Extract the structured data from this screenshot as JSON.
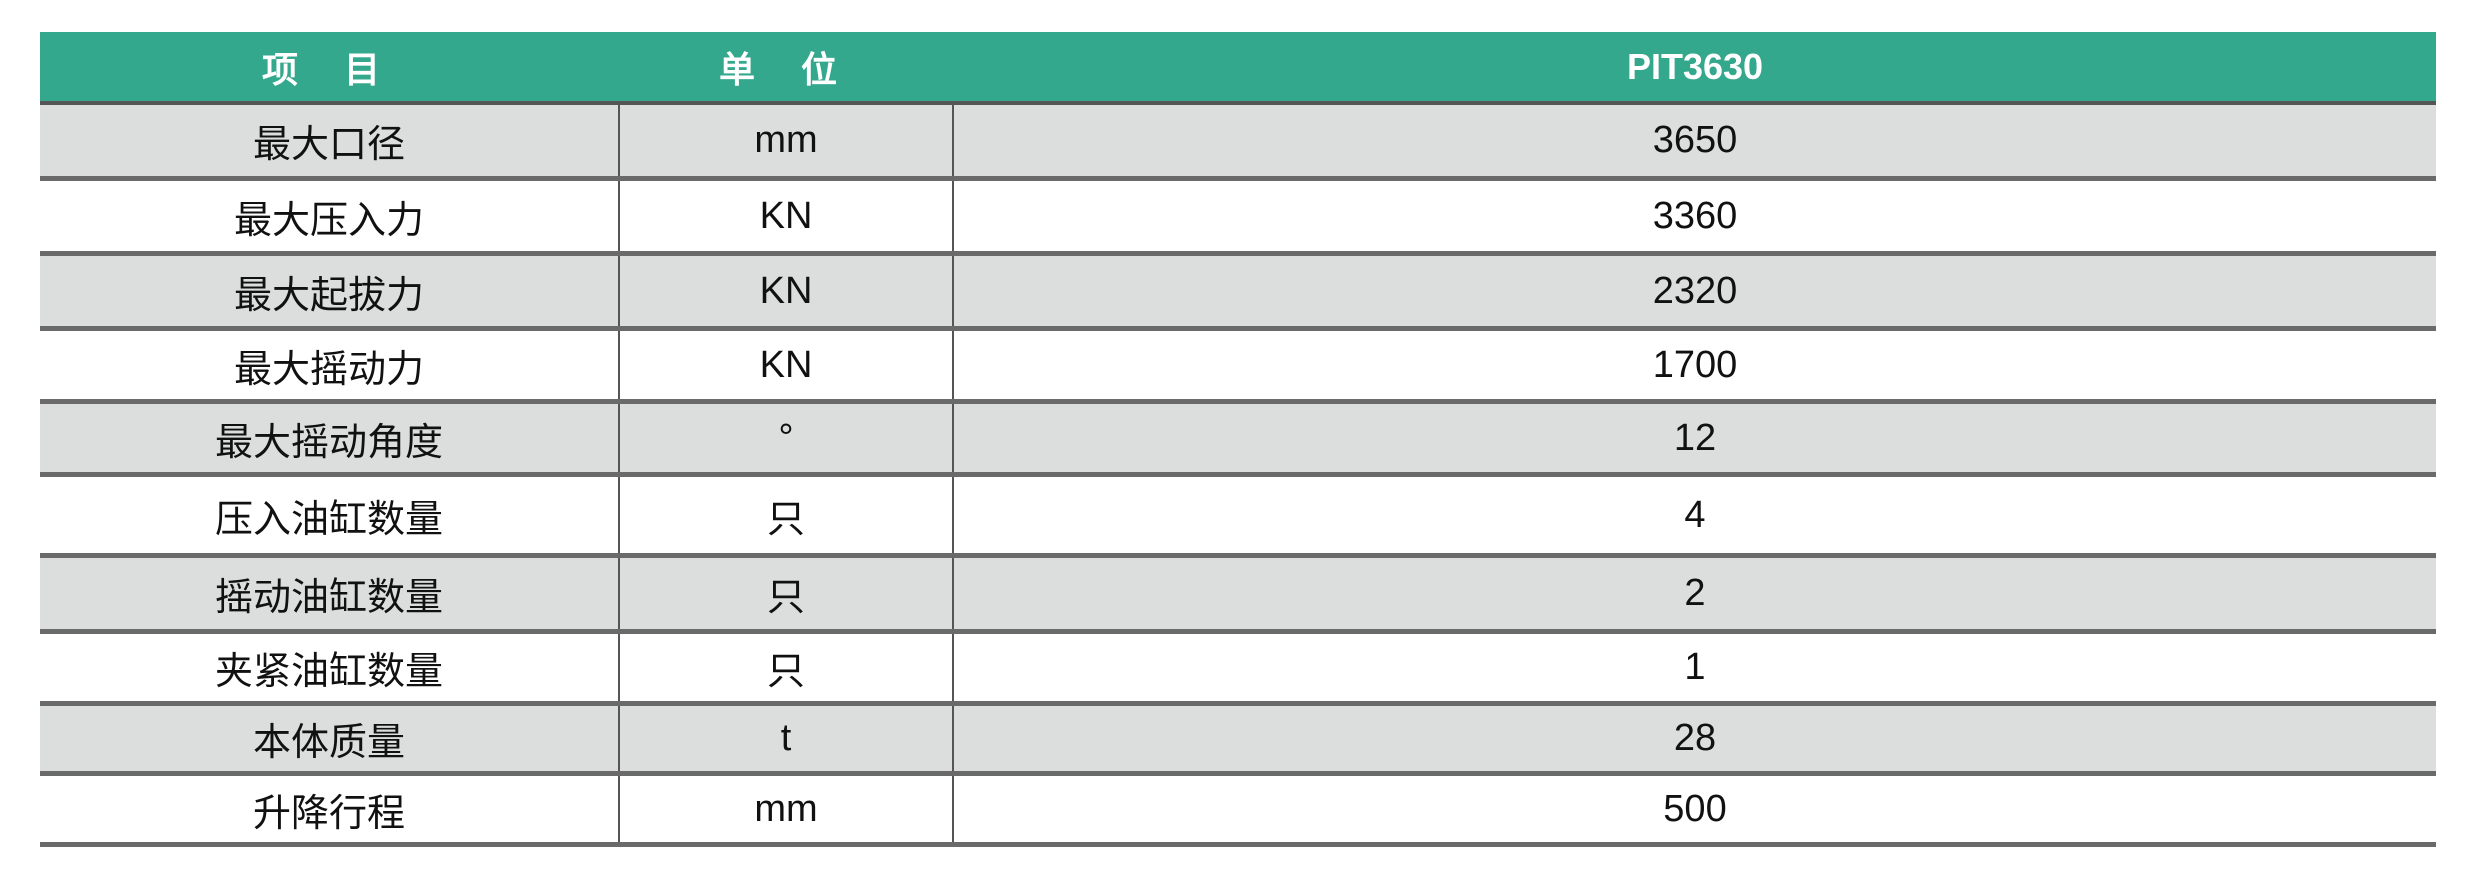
{
  "header": {
    "item": "项 目",
    "unit": "单 位",
    "model": "PIT3630"
  },
  "colors": {
    "header_bg": "#34a88c",
    "row_alt": "#dcdedd"
  },
  "rows": [
    {
      "item": "最大口径",
      "unit": "mm",
      "value": "3650"
    },
    {
      "item": "最大压入力",
      "unit": "KN",
      "value": "3360"
    },
    {
      "item": "最大起拔力",
      "unit": "KN",
      "value": "2320"
    },
    {
      "item": "最大摇动力",
      "unit": "KN",
      "value": "1700"
    },
    {
      "item": "最大摇动角度",
      "unit": "°",
      "value": "12"
    },
    {
      "item": "压入油缸数量",
      "unit": "只",
      "value": "4"
    },
    {
      "item": "摇动油缸数量",
      "unit": "只",
      "value": "2"
    },
    {
      "item": "夹紧油缸数量",
      "unit": "只",
      "value": "1"
    },
    {
      "item": "本体质量",
      "unit": "t",
      "value": "28"
    },
    {
      "item": "升降行程",
      "unit": "mm",
      "value": "500"
    }
  ]
}
